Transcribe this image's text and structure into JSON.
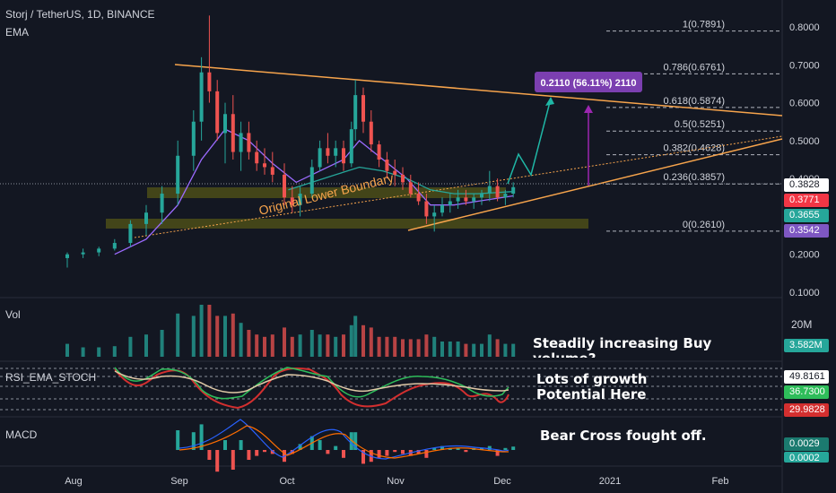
{
  "header": {
    "symbol": "Storj / TetherUS, 1D, BINANCE",
    "indicator": "EMA"
  },
  "panes": {
    "volume_title": "Vol",
    "rsi_title": "RSI_EMA_STOCH",
    "macd_title": "MACD"
  },
  "annotations": {
    "volume_note": "Steadily increasing Buy volume?",
    "rsi_note": "Lots of growth Potential Here",
    "macd_note": "Bear Cross fought off.",
    "trendline_label": "Original Lower Boundary",
    "target_box": "0.2110 (56.11%) 2110"
  },
  "chart_data": {
    "type": "candlestick",
    "title": "Storj / TetherUS, 1D, BINANCE",
    "x_ticks": [
      "Aug",
      "Sep",
      "Oct",
      "Nov",
      "Dec",
      "2021",
      "Feb"
    ],
    "y_ticks": [
      0.8,
      0.7,
      0.6,
      0.5,
      0.4,
      0.3,
      0.2,
      0.1
    ],
    "y_tick_labels": [
      "0.8000",
      "0.7000",
      "0.6000",
      "0.5000",
      "0.4000",
      "0.3000",
      "0.2000",
      "0.1000"
    ],
    "ylim": [
      0.1,
      0.8
    ],
    "fibonacci": [
      {
        "label": "1(0.7891)",
        "value": 0.7891
      },
      {
        "label": "0.786(0.6761)",
        "value": 0.6761
      },
      {
        "label": "0.618(0.5874)",
        "value": 0.5874
      },
      {
        "label": "0.5(0.5251)",
        "value": 0.5251
      },
      {
        "label": "0.382(0.4628)",
        "value": 0.4628
      },
      {
        "label": "0.236(0.3857)",
        "value": 0.3857
      },
      {
        "label": "0(0.2610)",
        "value": 0.261
      }
    ],
    "price_labels": [
      {
        "text": "0.3828",
        "value": 0.3828,
        "color": "#ffffff",
        "text_color": "#131722"
      },
      {
        "text": "0.3771",
        "value": 0.3771,
        "color": "#f23645",
        "text_color": "#ffffff"
      },
      {
        "text": "0.3655",
        "value": 0.3655,
        "color": "#26a69a",
        "text_color": "#ffffff"
      },
      {
        "text": "0.3542",
        "value": 0.3542,
        "color": "#7e57c2",
        "text_color": "#ffffff"
      }
    ],
    "price_series": [
      {
        "x": 0,
        "o": 0.19,
        "h": 0.205,
        "l": 0.165,
        "c": 0.2
      },
      {
        "x": 4,
        "o": 0.2,
        "h": 0.215,
        "l": 0.19,
        "c": 0.205
      },
      {
        "x": 8,
        "o": 0.205,
        "h": 0.22,
        "l": 0.195,
        "c": 0.215
      },
      {
        "x": 12,
        "o": 0.215,
        "h": 0.24,
        "l": 0.21,
        "c": 0.23
      },
      {
        "x": 16,
        "o": 0.23,
        "h": 0.29,
        "l": 0.22,
        "c": 0.28
      },
      {
        "x": 20,
        "o": 0.28,
        "h": 0.33,
        "l": 0.25,
        "c": 0.31
      },
      {
        "x": 24,
        "o": 0.31,
        "h": 0.38,
        "l": 0.28,
        "c": 0.36
      },
      {
        "x": 28,
        "o": 0.36,
        "h": 0.5,
        "l": 0.33,
        "c": 0.46
      },
      {
        "x": 32,
        "o": 0.46,
        "h": 0.58,
        "l": 0.42,
        "c": 0.55
      },
      {
        "x": 34,
        "o": 0.55,
        "h": 0.72,
        "l": 0.5,
        "c": 0.68
      },
      {
        "x": 36,
        "o": 0.68,
        "h": 0.83,
        "l": 0.6,
        "c": 0.63
      },
      {
        "x": 38,
        "o": 0.63,
        "h": 0.66,
        "l": 0.5,
        "c": 0.52
      },
      {
        "x": 40,
        "o": 0.52,
        "h": 0.6,
        "l": 0.44,
        "c": 0.57
      },
      {
        "x": 42,
        "o": 0.57,
        "h": 0.62,
        "l": 0.45,
        "c": 0.47
      },
      {
        "x": 44,
        "o": 0.47,
        "h": 0.55,
        "l": 0.42,
        "c": 0.52
      },
      {
        "x": 46,
        "o": 0.52,
        "h": 0.55,
        "l": 0.45,
        "c": 0.47
      },
      {
        "x": 48,
        "o": 0.47,
        "h": 0.5,
        "l": 0.42,
        "c": 0.44
      },
      {
        "x": 50,
        "o": 0.44,
        "h": 0.48,
        "l": 0.41,
        "c": 0.43
      },
      {
        "x": 52,
        "o": 0.43,
        "h": 0.47,
        "l": 0.39,
        "c": 0.41
      },
      {
        "x": 55,
        "o": 0.41,
        "h": 0.44,
        "l": 0.33,
        "c": 0.35
      },
      {
        "x": 57,
        "o": 0.35,
        "h": 0.38,
        "l": 0.31,
        "c": 0.33
      },
      {
        "x": 59,
        "o": 0.33,
        "h": 0.38,
        "l": 0.3,
        "c": 0.36
      },
      {
        "x": 62,
        "o": 0.36,
        "h": 0.45,
        "l": 0.35,
        "c": 0.43
      },
      {
        "x": 64,
        "o": 0.43,
        "h": 0.5,
        "l": 0.42,
        "c": 0.48
      },
      {
        "x": 66,
        "o": 0.48,
        "h": 0.52,
        "l": 0.44,
        "c": 0.46
      },
      {
        "x": 68,
        "o": 0.46,
        "h": 0.5,
        "l": 0.43,
        "c": 0.48
      },
      {
        "x": 70,
        "o": 0.48,
        "h": 0.5,
        "l": 0.42,
        "c": 0.44
      },
      {
        "x": 72,
        "o": 0.44,
        "h": 0.55,
        "l": 0.43,
        "c": 0.53
      },
      {
        "x": 73,
        "o": 0.53,
        "h": 0.66,
        "l": 0.5,
        "c": 0.62
      },
      {
        "x": 75,
        "o": 0.62,
        "h": 0.64,
        "l": 0.52,
        "c": 0.55
      },
      {
        "x": 77,
        "o": 0.55,
        "h": 0.58,
        "l": 0.47,
        "c": 0.49
      },
      {
        "x": 79,
        "o": 0.49,
        "h": 0.5,
        "l": 0.43,
        "c": 0.45
      },
      {
        "x": 81,
        "o": 0.45,
        "h": 0.47,
        "l": 0.4,
        "c": 0.42
      },
      {
        "x": 83,
        "o": 0.42,
        "h": 0.45,
        "l": 0.38,
        "c": 0.41
      },
      {
        "x": 85,
        "o": 0.41,
        "h": 0.43,
        "l": 0.37,
        "c": 0.39
      },
      {
        "x": 87,
        "o": 0.39,
        "h": 0.41,
        "l": 0.35,
        "c": 0.36
      },
      {
        "x": 89,
        "o": 0.36,
        "h": 0.39,
        "l": 0.33,
        "c": 0.34
      },
      {
        "x": 91,
        "o": 0.34,
        "h": 0.36,
        "l": 0.28,
        "c": 0.3
      },
      {
        "x": 93,
        "o": 0.3,
        "h": 0.33,
        "l": 0.26,
        "c": 0.31
      },
      {
        "x": 95,
        "o": 0.31,
        "h": 0.35,
        "l": 0.3,
        "c": 0.33
      },
      {
        "x": 97,
        "o": 0.33,
        "h": 0.36,
        "l": 0.31,
        "c": 0.34
      },
      {
        "x": 99,
        "o": 0.34,
        "h": 0.37,
        "l": 0.32,
        "c": 0.35
      },
      {
        "x": 101,
        "o": 0.35,
        "h": 0.37,
        "l": 0.33,
        "c": 0.34
      },
      {
        "x": 103,
        "o": 0.34,
        "h": 0.36,
        "l": 0.32,
        "c": 0.35
      },
      {
        "x": 105,
        "o": 0.35,
        "h": 0.37,
        "l": 0.33,
        "c": 0.36
      },
      {
        "x": 107,
        "o": 0.36,
        "h": 0.42,
        "l": 0.34,
        "c": 0.38
      },
      {
        "x": 109,
        "o": 0.38,
        "h": 0.4,
        "l": 0.34,
        "c": 0.35
      },
      {
        "x": 111,
        "o": 0.35,
        "h": 0.37,
        "l": 0.33,
        "c": 0.36
      },
      {
        "x": 113,
        "o": 0.36,
        "h": 0.39,
        "l": 0.35,
        "c": 0.3771
      }
    ],
    "ema_series": [
      {
        "name": "EMA (purple)",
        "color": "#9c6bff",
        "values": [
          [
            12,
            0.2
          ],
          [
            20,
            0.24
          ],
          [
            28,
            0.33
          ],
          [
            34,
            0.45
          ],
          [
            40,
            0.53
          ],
          [
            46,
            0.5
          ],
          [
            52,
            0.44
          ],
          [
            58,
            0.39
          ],
          [
            64,
            0.42
          ],
          [
            70,
            0.45
          ],
          [
            74,
            0.5
          ],
          [
            80,
            0.45
          ],
          [
            86,
            0.4
          ],
          [
            92,
            0.33
          ],
          [
            98,
            0.33
          ],
          [
            104,
            0.34
          ],
          [
            113,
            0.3542
          ]
        ]
      },
      {
        "name": "EMA (teal)",
        "color": "#26a69a",
        "values": [
          [
            56,
            0.37
          ],
          [
            62,
            0.39
          ],
          [
            68,
            0.41
          ],
          [
            74,
            0.43
          ],
          [
            80,
            0.42
          ],
          [
            86,
            0.4
          ],
          [
            92,
            0.37
          ],
          [
            98,
            0.36
          ],
          [
            104,
            0.36
          ],
          [
            113,
            0.3655
          ]
        ]
      }
    ],
    "volume_axis": [
      {
        "text": "20M",
        "value": 20
      }
    ],
    "volume_last": "3.582M",
    "rsi_labels": [
      "49.8161",
      "36.7300",
      "29.9828"
    ],
    "macd_labels": [
      "0.0029",
      "0.0002"
    ]
  }
}
